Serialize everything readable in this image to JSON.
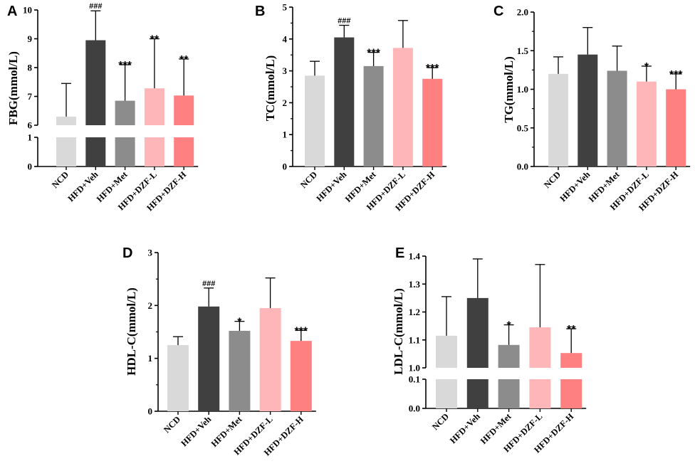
{
  "figure": {
    "colors": [
      "#d9d9d9",
      "#404040",
      "#8c8c8c",
      "#ffb6b9",
      "#ff8080"
    ]
  },
  "chart_data": [
    {
      "panel": "A",
      "type": "bar",
      "ylabel": "FBG(mmol/L)",
      "categories": [
        "NCD",
        "HFD+Veh",
        "HFD+Met",
        "HFD+DZF-L",
        "HFD+DZF-H"
      ],
      "values": [
        6.3,
        8.95,
        6.85,
        7.28,
        7.03
      ],
      "errors": [
        1.15,
        1.02,
        1.25,
        1.72,
        1.27
      ],
      "significance": [
        "",
        "###",
        "***",
        "**",
        "**"
      ],
      "ylim": [
        0,
        10
      ],
      "axis_break": {
        "lower": [
          0,
          1
        ],
        "upper": [
          6,
          10
        ]
      },
      "yticks_lower": [
        "0",
        "1"
      ],
      "yticks_upper": [
        "6",
        "7",
        "8",
        "9",
        "10"
      ]
    },
    {
      "panel": "B",
      "type": "bar",
      "ylabel": "TC(mmol/L)",
      "categories": [
        "NCD",
        "HFD+Veh",
        "HFD+Met",
        "HFD+DZF-L",
        "HFD+DZF-H"
      ],
      "values": [
        2.85,
        4.05,
        3.15,
        3.72,
        2.75
      ],
      "errors": [
        0.45,
        0.38,
        0.43,
        0.86,
        0.35
      ],
      "significance": [
        "",
        "###",
        "***",
        "",
        "***"
      ],
      "ylim": [
        0,
        5
      ],
      "yticks": [
        "0",
        "1",
        "2",
        "3",
        "4",
        "5"
      ]
    },
    {
      "panel": "C",
      "type": "bar",
      "ylabel": "TG(mmol/L)",
      "categories": [
        "NCD",
        "HFD+Veh",
        "HFD+Met",
        "HFD+DZF-L",
        "HFD+DZF-H"
      ],
      "values": [
        1.2,
        1.45,
        1.24,
        1.1,
        1.0
      ],
      "errors": [
        0.22,
        0.35,
        0.32,
        0.2,
        0.2
      ],
      "significance": [
        "",
        "",
        "",
        "*",
        "***"
      ],
      "ylim": [
        0,
        2
      ],
      "yticks": [
        "0.0",
        "0.5",
        "1.0",
        "1.5",
        "2.0"
      ]
    },
    {
      "panel": "D",
      "type": "bar",
      "ylabel": "HDL-C(mmol/L)",
      "categories": [
        "NCD",
        "HFD+Veh",
        "HFD+Met",
        "HFD+DZF-L",
        "HFD+DZF-H"
      ],
      "values": [
        1.25,
        1.98,
        1.52,
        1.95,
        1.33
      ],
      "errors": [
        0.16,
        0.35,
        0.18,
        0.57,
        0.2
      ],
      "significance": [
        "",
        "###",
        "*",
        "",
        "***"
      ],
      "ylim": [
        0,
        3
      ],
      "yticks": [
        "0",
        "1",
        "2",
        "3"
      ]
    },
    {
      "panel": "E",
      "type": "bar",
      "ylabel": "LDL-C(mmol/L)",
      "categories": [
        "NCD",
        "HFD+Veh",
        "HFD+Met",
        "HFD+DZF-L",
        "HFD+DZF-H"
      ],
      "values": [
        1.115,
        1.25,
        1.082,
        1.145,
        1.053
      ],
      "errors": [
        0.14,
        0.14,
        0.072,
        0.225,
        0.087
      ],
      "significance": [
        "",
        "",
        "*",
        "",
        "**"
      ],
      "ylim": [
        0,
        1.4
      ],
      "axis_break": {
        "lower": [
          0,
          0.1
        ],
        "upper": [
          1.0,
          1.4
        ]
      },
      "yticks_lower": [
        "0.0",
        "0.1"
      ],
      "yticks_upper": [
        "1.0",
        "1.1",
        "1.2",
        "1.3",
        "1.4"
      ]
    }
  ]
}
